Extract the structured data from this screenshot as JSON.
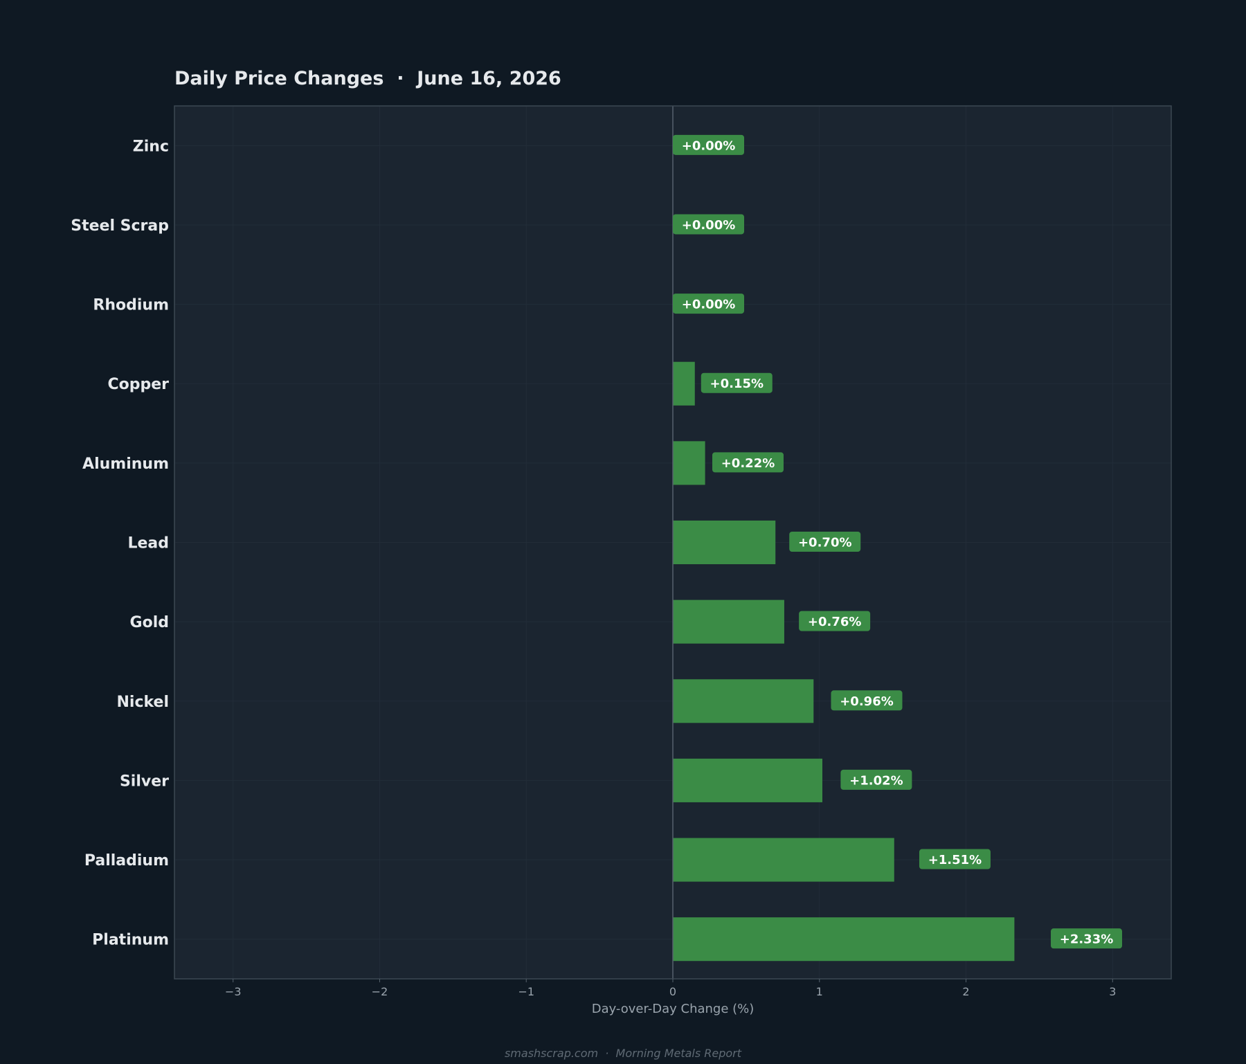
{
  "chart_data": {
    "type": "bar",
    "orientation": "horizontal",
    "title": "Daily Price Changes  ·  June 16, 2026",
    "xlabel": "Day-over-Day Change (%)",
    "ylabel": "",
    "xlim": [
      -3.4,
      3.4
    ],
    "x_ticks": [
      -3,
      -2,
      -1,
      0,
      1,
      2,
      3
    ],
    "x_tick_labels": [
      "−3",
      "−2",
      "−1",
      "0",
      "1",
      "2",
      "3"
    ],
    "categories": [
      "Zinc",
      "Steel Scrap",
      "Rhodium",
      "Copper",
      "Aluminum",
      "Lead",
      "Gold",
      "Nickel",
      "Silver",
      "Palladium",
      "Platinum"
    ],
    "values": [
      0.0,
      0.0,
      0.0,
      0.15,
      0.22,
      0.7,
      0.76,
      0.96,
      1.02,
      1.51,
      2.33
    ],
    "value_labels": [
      "+0.00%",
      "+0.00%",
      "+0.00%",
      "+0.15%",
      "+0.22%",
      "+0.70%",
      "+0.76%",
      "+0.96%",
      "+1.02%",
      "+1.51%",
      "+2.33%"
    ],
    "grid": true,
    "colors": {
      "positive_bar": "#3b8c46",
      "label_badge": "#3b8c46",
      "plot_background": "#1b2530",
      "page_background": "#0f1923",
      "zero_line": "#56626d",
      "frame": "#3c4853"
    }
  },
  "footer": {
    "text": "smashscrap.com  ·  Morning Metals Report"
  }
}
